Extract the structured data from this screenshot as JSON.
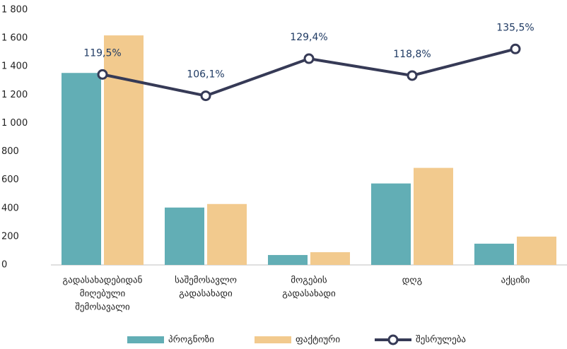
{
  "chart_data": {
    "type": "bar_line",
    "categories": [
      [
        "გადასახადებიდან",
        "მიღებული",
        "შემოსავალი"
      ],
      [
        "საშემოსავლო",
        "გადასახადი"
      ],
      [
        "მოგების",
        "გადასახადი"
      ],
      [
        "დღგ"
      ],
      [
        "აქციზი"
      ]
    ],
    "series": [
      {
        "name": "პროგნოზი",
        "color": "#62aeb5",
        "type": "bar",
        "values": [
          1355,
          405,
          70,
          575,
          150
        ]
      },
      {
        "name": "ფაქტიური",
        "color": "#f2ca8e",
        "type": "bar",
        "values": [
          1620,
          430,
          90,
          685,
          200
        ]
      },
      {
        "name": "შესრულება",
        "color": "#363a56",
        "type": "line",
        "axis": "y2",
        "values": [
          119.5,
          106.1,
          129.4,
          118.8,
          135.5
        ],
        "value_labels": [
          "119,5%",
          "106,1%",
          "129,4%",
          "118,8%",
          "135,5%"
        ]
      }
    ],
    "ylim": [
      0,
      1800
    ],
    "yticks": [
      0,
      200,
      400,
      600,
      800,
      {
        "value": 1000,
        "label": "1 000"
      },
      {
        "value": 1200,
        "label": "1 200"
      },
      {
        "value": 1400,
        "label": "1 400"
      },
      {
        "value": 1600,
        "label": "1 600"
      },
      {
        "value": 1800,
        "label": "1 800"
      }
    ],
    "y2lim": [
      0,
      160
    ],
    "grid": false,
    "legend": "bottom"
  }
}
